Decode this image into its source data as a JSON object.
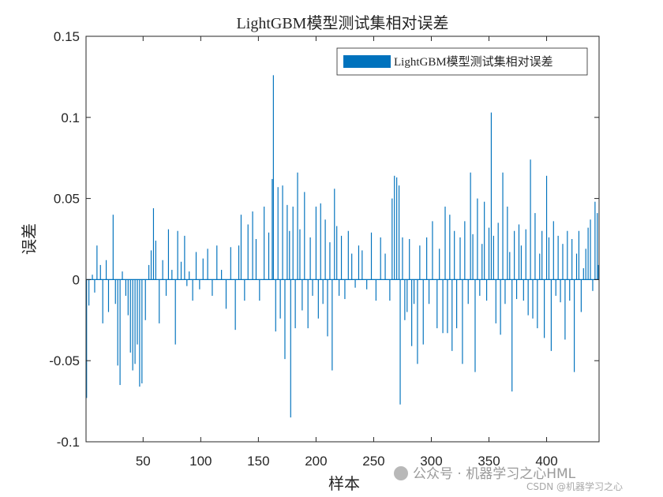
{
  "chart_data": {
    "type": "bar",
    "title": "LightGBM模型测试集相对误差",
    "xlabel": "样本",
    "ylabel": "误差",
    "xlim": [
      0.5,
      445.5
    ],
    "ylim": [
      -0.1,
      0.15
    ],
    "xticks": [
      50,
      100,
      150,
      200,
      250,
      300,
      350,
      400
    ],
    "yticks": [
      -0.1,
      -0.05,
      0,
      0.05,
      0.1,
      0.15
    ],
    "ytick_labels": [
      "-0.1",
      "-0.05",
      "0",
      "0.05",
      "0.1",
      "0.15"
    ],
    "grid": false,
    "legend_position": "top-right",
    "series": [
      {
        "name": "LightGBM模型测试集相对误差",
        "color": "#0072BD",
        "anchors": [
          [
            1,
            -0.073
          ],
          [
            3,
            -0.016
          ],
          [
            6,
            0.003
          ],
          [
            8,
            -0.008
          ],
          [
            10,
            0.021
          ],
          [
            13,
            0.009
          ],
          [
            15,
            -0.027
          ],
          [
            18,
            0.012
          ],
          [
            20,
            -0.02
          ],
          [
            24,
            0.04
          ],
          [
            26,
            -0.015
          ],
          [
            28,
            -0.053
          ],
          [
            30,
            -0.065
          ],
          [
            32,
            0.005
          ],
          [
            35,
            -0.01
          ],
          [
            37,
            -0.022
          ],
          [
            39,
            -0.045
          ],
          [
            41,
            -0.056
          ],
          [
            43,
            -0.052
          ],
          [
            45,
            -0.04
          ],
          [
            47,
            -0.066
          ],
          [
            49,
            -0.064
          ],
          [
            52,
            -0.025
          ],
          [
            55,
            0.009
          ],
          [
            57,
            0.018
          ],
          [
            59,
            0.044
          ],
          [
            61,
            0.024
          ],
          [
            64,
            -0.027
          ],
          [
            67,
            0.012
          ],
          [
            70,
            -0.01
          ],
          [
            72,
            0.031
          ],
          [
            75,
            0.006
          ],
          [
            78,
            -0.04
          ],
          [
            80,
            0.03
          ],
          [
            83,
            0.011
          ],
          [
            86,
            0.027
          ],
          [
            88,
            -0.004
          ],
          [
            90,
            0.005
          ],
          [
            93,
            -0.013
          ],
          [
            96,
            0.017
          ],
          [
            99,
            -0.006
          ],
          [
            102,
            0.013
          ],
          [
            106,
            0.019
          ],
          [
            110,
            -0.01
          ],
          [
            114,
            0.021
          ],
          [
            118,
            0.006
          ],
          [
            122,
            -0.018
          ],
          [
            126,
            0.02
          ],
          [
            130,
            -0.031
          ],
          [
            133,
            0.021
          ],
          [
            135,
            0.04
          ],
          [
            138,
            -0.013
          ],
          [
            141,
            0.034
          ],
          [
            145,
            0.042
          ],
          [
            148,
            0.025
          ],
          [
            151,
            -0.013
          ],
          [
            155,
            0.045
          ],
          [
            159,
            0.029
          ],
          [
            162,
            0.062
          ],
          [
            163,
            0.126
          ],
          [
            165,
            -0.032
          ],
          [
            167,
            0.057
          ],
          [
            169,
            -0.024
          ],
          [
            171,
            0.058
          ],
          [
            173,
            -0.049
          ],
          [
            175,
            0.046
          ],
          [
            177,
            0.03
          ],
          [
            178,
            -0.085
          ],
          [
            180,
            0.045
          ],
          [
            182,
            -0.03
          ],
          [
            184,
            0.066
          ],
          [
            186,
            0.031
          ],
          [
            188,
            -0.019
          ],
          [
            190,
            0.054
          ],
          [
            193,
            -0.03
          ],
          [
            195,
            0.026
          ],
          [
            197,
            -0.01
          ],
          [
            200,
            0.045
          ],
          [
            202,
            -0.024
          ],
          [
            204,
            0.047
          ],
          [
            206,
            -0.015
          ],
          [
            208,
            0.037
          ],
          [
            210,
            -0.035
          ],
          [
            212,
            0.023
          ],
          [
            214,
            -0.056
          ],
          [
            216,
            0.056
          ],
          [
            218,
            0.033
          ],
          [
            220,
            -0.01
          ],
          [
            222,
            0.027
          ],
          [
            225,
            -0.012
          ],
          [
            228,
            0.03
          ],
          [
            231,
            0.016
          ],
          [
            234,
            -0.005
          ],
          [
            237,
            0.021
          ],
          [
            240,
            0.018
          ],
          [
            244,
            -0.006
          ],
          [
            248,
            0.029
          ],
          [
            252,
            -0.013
          ],
          [
            256,
            0.026
          ],
          [
            260,
            0.016
          ],
          [
            264,
            -0.013
          ],
          [
            266,
            0.05
          ],
          [
            268,
            0.064
          ],
          [
            270,
            0.063
          ],
          [
            272,
            0.058
          ],
          [
            273,
            -0.077
          ],
          [
            275,
            0.026
          ],
          [
            277,
            -0.025
          ],
          [
            279,
            -0.02
          ],
          [
            281,
            0.025
          ],
          [
            283,
            -0.041
          ],
          [
            285,
            -0.015
          ],
          [
            288,
            -0.052
          ],
          [
            290,
            0.021
          ],
          [
            293,
            -0.04
          ],
          [
            296,
            0.026
          ],
          [
            298,
            -0.015
          ],
          [
            301,
            0.036
          ],
          [
            305,
            -0.03
          ],
          [
            307,
            0.019
          ],
          [
            310,
            -0.033
          ],
          [
            312,
            0.045
          ],
          [
            314,
            -0.033
          ],
          [
            316,
            0.04
          ],
          [
            318,
            -0.044
          ],
          [
            320,
            0.03
          ],
          [
            322,
            -0.03
          ],
          [
            325,
            0.026
          ],
          [
            327,
            -0.052
          ],
          [
            329,
            0.036
          ],
          [
            332,
            -0.015
          ],
          [
            334,
            0.066
          ],
          [
            336,
            0.028
          ],
          [
            338,
            -0.057
          ],
          [
            340,
            0.05
          ],
          [
            342,
            -0.01
          ],
          [
            344,
            0.022
          ],
          [
            346,
            0.048
          ],
          [
            348,
            -0.013
          ],
          [
            350,
            0.032
          ],
          [
            352,
            0.103
          ],
          [
            354,
            0.027
          ],
          [
            356,
            -0.027
          ],
          [
            358,
            0.035
          ],
          [
            360,
            -0.034
          ],
          [
            362,
            0.066
          ],
          [
            364,
            -0.015
          ],
          [
            366,
            0.045
          ],
          [
            368,
            0.017
          ],
          [
            370,
            -0.069
          ],
          [
            372,
            0.03
          ],
          [
            374,
            -0.012
          ],
          [
            376,
            0.034
          ],
          [
            378,
            0.021
          ],
          [
            380,
            -0.013
          ],
          [
            382,
            0.031
          ],
          [
            384,
            -0.022
          ],
          [
            386,
            0.074
          ],
          [
            388,
            -0.024
          ],
          [
            390,
            0.041
          ],
          [
            392,
            -0.03
          ],
          [
            394,
            0.016
          ],
          [
            396,
            0.03
          ],
          [
            398,
            -0.036
          ],
          [
            400,
            0.064
          ],
          [
            402,
            0.026
          ],
          [
            404,
            -0.044
          ],
          [
            406,
            0.036
          ],
          [
            408,
            -0.01
          ],
          [
            410,
            0.027
          ],
          [
            412,
            -0.014
          ],
          [
            414,
            0.022
          ],
          [
            416,
            -0.037
          ],
          [
            418,
            0.03
          ],
          [
            420,
            -0.013
          ],
          [
            422,
            0.025
          ],
          [
            424,
            -0.057
          ],
          [
            426,
            0.016
          ],
          [
            428,
            0.03
          ],
          [
            430,
            -0.02
          ],
          [
            432,
            0.007
          ],
          [
            434,
            0.019
          ],
          [
            436,
            0.032
          ],
          [
            438,
            0.037
          ],
          [
            440,
            -0.007
          ],
          [
            442,
            0.048
          ],
          [
            444,
            0.041
          ],
          [
            445,
            0.009
          ]
        ]
      }
    ]
  },
  "watermark": {
    "main": "公众号 · 机器学习之心HML",
    "small": "CSDN @机器学习之心"
  }
}
